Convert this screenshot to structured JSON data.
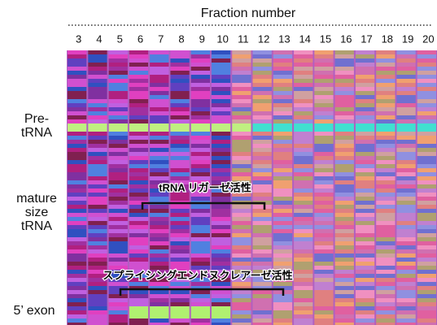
{
  "header": {
    "title": "Fraction number"
  },
  "lanes": [
    "3",
    "4",
    "5",
    "6",
    "7",
    "8",
    "9",
    "10",
    "11",
    "12",
    "13",
    "14",
    "15",
    "16",
    "17",
    "18",
    "19",
    "20"
  ],
  "side_labels": [
    {
      "lines": [
        "Pre-",
        "tRNA"
      ]
    },
    {
      "lines": [
        "mature",
        "size",
        "tRNA"
      ]
    },
    {
      "lines": [
        "5’ exon"
      ]
    }
  ],
  "annotations": [
    {
      "text": "tRNA リガーゼ活性"
    },
    {
      "text": "スプライシングエンドヌクレアーゼ活性"
    }
  ]
}
